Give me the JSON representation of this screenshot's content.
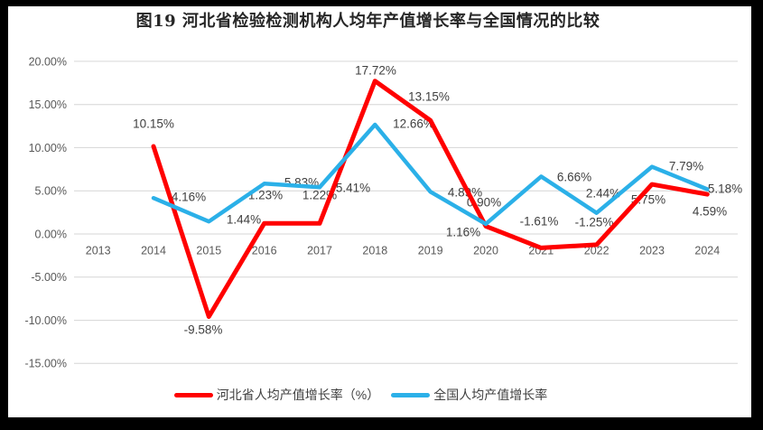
{
  "figure": {
    "frame_color": "#000000",
    "background_color": "#ffffff"
  },
  "title": "图19  河北省检验检测机构人均年产值增长率与全国情况的比较",
  "chart_data": {
    "type": "line",
    "title": "图19  河北省检验检测机构人均年产值增长率与全国情况的比较",
    "categories": [
      "2013",
      "2014",
      "2015",
      "2016",
      "2017",
      "2018",
      "2019",
      "2020",
      "2021",
      "2022",
      "2023",
      "2024"
    ],
    "series": [
      {
        "name": "河北省人均产值增长率（%）",
        "color": "#FF0000",
        "values": [
          null,
          10.15,
          -9.58,
          1.23,
          1.22,
          17.72,
          13.15,
          0.9,
          -1.61,
          -1.25,
          5.75,
          4.59
        ]
      },
      {
        "name": "全国人均产值增长率",
        "color": "#2BB0E8",
        "values": [
          null,
          4.16,
          1.44,
          5.83,
          5.41,
          12.66,
          4.89,
          1.16,
          6.66,
          2.44,
          7.79,
          5.18
        ]
      }
    ],
    "xlabel": "",
    "ylabel": "",
    "ylim": [
      -15,
      20
    ],
    "yticks": [
      20,
      15,
      10,
      5,
      0,
      -5,
      -10,
      -15
    ],
    "ytick_labels": [
      "20.00%",
      "15.00%",
      "10.00%",
      "5.00%",
      "0.00%",
      "-5.00%",
      "-10.00%",
      "-15.00%"
    ],
    "data_label_suffix": "%",
    "grid": "horizontal",
    "gridline_color": "#D6D6D6",
    "axis_text_color": "#595959",
    "data_label_color": "#3F3F3F",
    "legend_position": "bottom",
    "data_labels_visible": true
  }
}
